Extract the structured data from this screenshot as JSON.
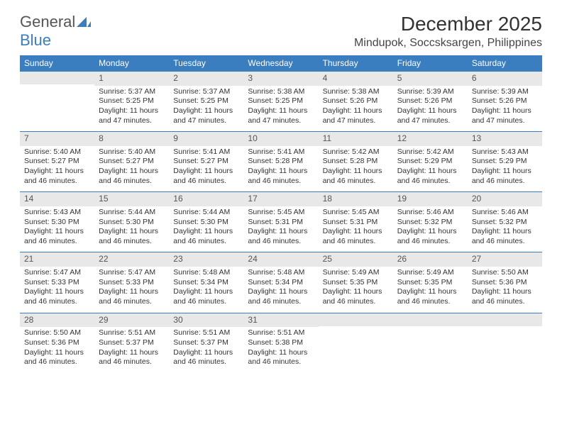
{
  "logo": {
    "part1": "General",
    "part2": "Blue"
  },
  "title": "December 2025",
  "location": "Mindupok, Soccsksargen, Philippines",
  "colors": {
    "header_bg": "#3a7ebf",
    "header_text": "#ffffff",
    "daynum_bg": "#e8e8e8",
    "border": "#3a7ebf",
    "logo_gray": "#555555",
    "logo_blue": "#3a7ebf"
  },
  "weekdays": [
    "Sunday",
    "Monday",
    "Tuesday",
    "Wednesday",
    "Thursday",
    "Friday",
    "Saturday"
  ],
  "weeks": [
    [
      null,
      {
        "n": "1",
        "sr": "Sunrise: 5:37 AM",
        "ss": "Sunset: 5:25 PM",
        "dl": "Daylight: 11 hours and 47 minutes."
      },
      {
        "n": "2",
        "sr": "Sunrise: 5:37 AM",
        "ss": "Sunset: 5:25 PM",
        "dl": "Daylight: 11 hours and 47 minutes."
      },
      {
        "n": "3",
        "sr": "Sunrise: 5:38 AM",
        "ss": "Sunset: 5:25 PM",
        "dl": "Daylight: 11 hours and 47 minutes."
      },
      {
        "n": "4",
        "sr": "Sunrise: 5:38 AM",
        "ss": "Sunset: 5:26 PM",
        "dl": "Daylight: 11 hours and 47 minutes."
      },
      {
        "n": "5",
        "sr": "Sunrise: 5:39 AM",
        "ss": "Sunset: 5:26 PM",
        "dl": "Daylight: 11 hours and 47 minutes."
      },
      {
        "n": "6",
        "sr": "Sunrise: 5:39 AM",
        "ss": "Sunset: 5:26 PM",
        "dl": "Daylight: 11 hours and 47 minutes."
      }
    ],
    [
      {
        "n": "7",
        "sr": "Sunrise: 5:40 AM",
        "ss": "Sunset: 5:27 PM",
        "dl": "Daylight: 11 hours and 46 minutes."
      },
      {
        "n": "8",
        "sr": "Sunrise: 5:40 AM",
        "ss": "Sunset: 5:27 PM",
        "dl": "Daylight: 11 hours and 46 minutes."
      },
      {
        "n": "9",
        "sr": "Sunrise: 5:41 AM",
        "ss": "Sunset: 5:27 PM",
        "dl": "Daylight: 11 hours and 46 minutes."
      },
      {
        "n": "10",
        "sr": "Sunrise: 5:41 AM",
        "ss": "Sunset: 5:28 PM",
        "dl": "Daylight: 11 hours and 46 minutes."
      },
      {
        "n": "11",
        "sr": "Sunrise: 5:42 AM",
        "ss": "Sunset: 5:28 PM",
        "dl": "Daylight: 11 hours and 46 minutes."
      },
      {
        "n": "12",
        "sr": "Sunrise: 5:42 AM",
        "ss": "Sunset: 5:29 PM",
        "dl": "Daylight: 11 hours and 46 minutes."
      },
      {
        "n": "13",
        "sr": "Sunrise: 5:43 AM",
        "ss": "Sunset: 5:29 PM",
        "dl": "Daylight: 11 hours and 46 minutes."
      }
    ],
    [
      {
        "n": "14",
        "sr": "Sunrise: 5:43 AM",
        "ss": "Sunset: 5:30 PM",
        "dl": "Daylight: 11 hours and 46 minutes."
      },
      {
        "n": "15",
        "sr": "Sunrise: 5:44 AM",
        "ss": "Sunset: 5:30 PM",
        "dl": "Daylight: 11 hours and 46 minutes."
      },
      {
        "n": "16",
        "sr": "Sunrise: 5:44 AM",
        "ss": "Sunset: 5:30 PM",
        "dl": "Daylight: 11 hours and 46 minutes."
      },
      {
        "n": "17",
        "sr": "Sunrise: 5:45 AM",
        "ss": "Sunset: 5:31 PM",
        "dl": "Daylight: 11 hours and 46 minutes."
      },
      {
        "n": "18",
        "sr": "Sunrise: 5:45 AM",
        "ss": "Sunset: 5:31 PM",
        "dl": "Daylight: 11 hours and 46 minutes."
      },
      {
        "n": "19",
        "sr": "Sunrise: 5:46 AM",
        "ss": "Sunset: 5:32 PM",
        "dl": "Daylight: 11 hours and 46 minutes."
      },
      {
        "n": "20",
        "sr": "Sunrise: 5:46 AM",
        "ss": "Sunset: 5:32 PM",
        "dl": "Daylight: 11 hours and 46 minutes."
      }
    ],
    [
      {
        "n": "21",
        "sr": "Sunrise: 5:47 AM",
        "ss": "Sunset: 5:33 PM",
        "dl": "Daylight: 11 hours and 46 minutes."
      },
      {
        "n": "22",
        "sr": "Sunrise: 5:47 AM",
        "ss": "Sunset: 5:33 PM",
        "dl": "Daylight: 11 hours and 46 minutes."
      },
      {
        "n": "23",
        "sr": "Sunrise: 5:48 AM",
        "ss": "Sunset: 5:34 PM",
        "dl": "Daylight: 11 hours and 46 minutes."
      },
      {
        "n": "24",
        "sr": "Sunrise: 5:48 AM",
        "ss": "Sunset: 5:34 PM",
        "dl": "Daylight: 11 hours and 46 minutes."
      },
      {
        "n": "25",
        "sr": "Sunrise: 5:49 AM",
        "ss": "Sunset: 5:35 PM",
        "dl": "Daylight: 11 hours and 46 minutes."
      },
      {
        "n": "26",
        "sr": "Sunrise: 5:49 AM",
        "ss": "Sunset: 5:35 PM",
        "dl": "Daylight: 11 hours and 46 minutes."
      },
      {
        "n": "27",
        "sr": "Sunrise: 5:50 AM",
        "ss": "Sunset: 5:36 PM",
        "dl": "Daylight: 11 hours and 46 minutes."
      }
    ],
    [
      {
        "n": "28",
        "sr": "Sunrise: 5:50 AM",
        "ss": "Sunset: 5:36 PM",
        "dl": "Daylight: 11 hours and 46 minutes."
      },
      {
        "n": "29",
        "sr": "Sunrise: 5:51 AM",
        "ss": "Sunset: 5:37 PM",
        "dl": "Daylight: 11 hours and 46 minutes."
      },
      {
        "n": "30",
        "sr": "Sunrise: 5:51 AM",
        "ss": "Sunset: 5:37 PM",
        "dl": "Daylight: 11 hours and 46 minutes."
      },
      {
        "n": "31",
        "sr": "Sunrise: 5:51 AM",
        "ss": "Sunset: 5:38 PM",
        "dl": "Daylight: 11 hours and 46 minutes."
      },
      null,
      null,
      null
    ]
  ]
}
